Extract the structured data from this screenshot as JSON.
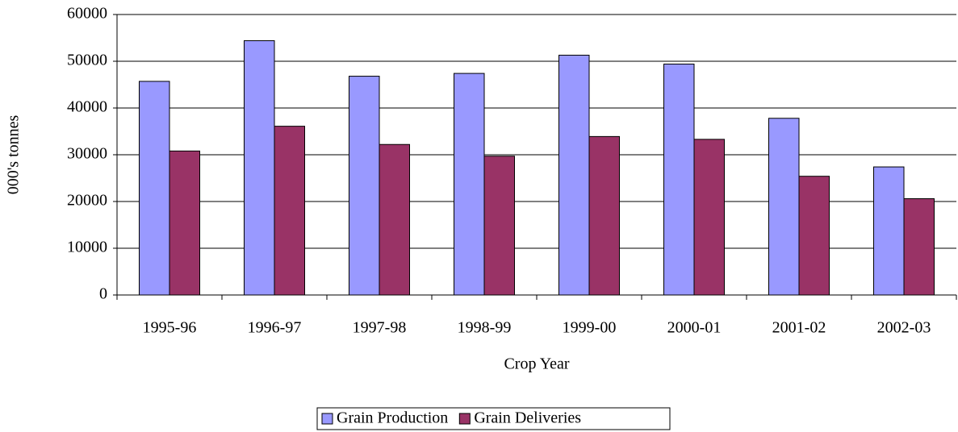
{
  "chart_data": {
    "type": "bar",
    "x_label": "Crop Year",
    "y_label": "000's tonnes",
    "categories": [
      "1995-96",
      "1996-97",
      "1997-98",
      "1998-99",
      "1999-00",
      "2000-01",
      "2001-02",
      "2002-03"
    ],
    "series": [
      {
        "name": "Grain Production",
        "color": "#9999ff",
        "values": [
          45700,
          54400,
          46800,
          47400,
          51300,
          49400,
          37800,
          27400
        ]
      },
      {
        "name": "Grain Deliveries",
        "color": "#993366",
        "values": [
          30800,
          36100,
          32200,
          29700,
          33900,
          33300,
          25400,
          20600
        ]
      }
    ],
    "ylim": [
      0,
      60000
    ],
    "yticks": [
      0,
      10000,
      20000,
      30000,
      40000,
      50000,
      60000
    ],
    "grid": true,
    "legend": "bottom"
  }
}
